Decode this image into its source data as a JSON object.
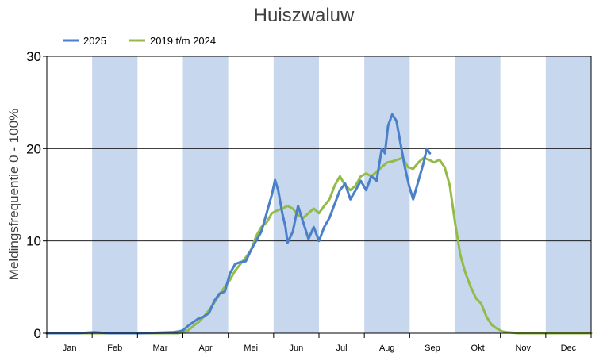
{
  "chart_data": {
    "type": "line",
    "title": "Huiszwaluw",
    "ylabel": "Meldingsfrequentie 0 - 100%",
    "xlabel": "",
    "ylim": [
      0,
      30
    ],
    "yticks": [
      0,
      10,
      20,
      30
    ],
    "months": [
      "Jan",
      "Feb",
      "Mar",
      "Apr",
      "Mei",
      "Jun",
      "Jul",
      "Aug",
      "Sep",
      "Okt",
      "Nov",
      "Dec"
    ],
    "x_unit": "week",
    "x_range": [
      1,
      53
    ],
    "grid": "horizontal",
    "legend_position": "top-left",
    "shaded_months": [
      "Feb",
      "Apr",
      "Jun",
      "Aug",
      "Okt",
      "Dec"
    ],
    "colors": {
      "band": "#c6d7ee",
      "series_2025": "#4a7fc9",
      "series_hist": "#93bb47"
    },
    "series": [
      {
        "name": "2025",
        "color": "#4a7fc9",
        "points": [
          [
            1,
            0
          ],
          [
            4,
            0
          ],
          [
            5.5,
            0.1
          ],
          [
            7,
            0
          ],
          [
            10,
            0
          ],
          [
            13,
            0.1
          ],
          [
            13.6,
            0.2
          ],
          [
            14,
            0.3
          ],
          [
            14.5,
            0.8
          ],
          [
            15,
            1.2
          ],
          [
            15.5,
            1.6
          ],
          [
            16,
            1.8
          ],
          [
            16.5,
            2.2
          ],
          [
            17,
            3.5
          ],
          [
            17.5,
            4.3
          ],
          [
            18,
            4.5
          ],
          [
            18.5,
            6.5
          ],
          [
            19,
            7.5
          ],
          [
            19.5,
            7.7
          ],
          [
            20,
            7.8
          ],
          [
            20.5,
            9.0
          ],
          [
            21,
            10.0
          ],
          [
            21.5,
            11.0
          ],
          [
            22,
            13.0
          ],
          [
            22.5,
            15.0
          ],
          [
            22.8,
            16.6
          ],
          [
            23.1,
            15.5
          ],
          [
            23.5,
            13.0
          ],
          [
            23.8,
            11.5
          ],
          [
            24,
            9.8
          ],
          [
            24.5,
            11.0
          ],
          [
            25,
            13.8
          ],
          [
            25.5,
            12.0
          ],
          [
            26,
            10.2
          ],
          [
            26.5,
            11.5
          ],
          [
            27,
            10.0
          ],
          [
            27.5,
            11.5
          ],
          [
            28,
            12.5
          ],
          [
            28.5,
            14.0
          ],
          [
            29,
            15.5
          ],
          [
            29.5,
            16.2
          ],
          [
            30,
            14.5
          ],
          [
            30.5,
            15.5
          ],
          [
            31,
            16.5
          ],
          [
            31.5,
            15.5
          ],
          [
            32,
            17.0
          ],
          [
            32.5,
            16.5
          ],
          [
            33,
            20.0
          ],
          [
            33.3,
            19.5
          ],
          [
            33.6,
            22.5
          ],
          [
            34,
            23.7
          ],
          [
            34.4,
            23.0
          ],
          [
            34.8,
            20.5
          ],
          [
            35.2,
            18.0
          ],
          [
            35.6,
            16.0
          ],
          [
            36,
            14.5
          ],
          [
            36.5,
            16.5
          ],
          [
            37,
            18.5
          ],
          [
            37.3,
            20.0
          ],
          [
            37.6,
            19.5
          ]
        ]
      },
      {
        "name": "2019 t/m 2024",
        "color": "#93bb47",
        "points": [
          [
            1,
            0
          ],
          [
            13.5,
            0
          ],
          [
            14,
            0.1
          ],
          [
            14.5,
            0.3
          ],
          [
            15,
            0.8
          ],
          [
            15.5,
            1.2
          ],
          [
            16,
            1.8
          ],
          [
            16.5,
            2.5
          ],
          [
            17,
            3.3
          ],
          [
            17.5,
            4.2
          ],
          [
            18,
            5.0
          ],
          [
            18.5,
            5.8
          ],
          [
            19,
            6.8
          ],
          [
            19.5,
            7.5
          ],
          [
            20,
            8.2
          ],
          [
            20.5,
            9.0
          ],
          [
            21,
            10.5
          ],
          [
            21.5,
            11.5
          ],
          [
            22,
            12.0
          ],
          [
            22.5,
            13.0
          ],
          [
            23,
            13.3
          ],
          [
            23.5,
            13.5
          ],
          [
            24,
            13.8
          ],
          [
            24.5,
            13.5
          ],
          [
            25,
            12.8
          ],
          [
            25.5,
            12.5
          ],
          [
            26,
            13.0
          ],
          [
            26.5,
            13.5
          ],
          [
            27,
            13.0
          ],
          [
            27.5,
            13.8
          ],
          [
            28,
            14.5
          ],
          [
            28.5,
            16.0
          ],
          [
            29,
            17.0
          ],
          [
            29.5,
            16.0
          ],
          [
            30,
            15.5
          ],
          [
            30.5,
            16.0
          ],
          [
            31,
            17.0
          ],
          [
            31.5,
            17.3
          ],
          [
            32,
            17.0
          ],
          [
            32.5,
            17.5
          ],
          [
            33,
            18.0
          ],
          [
            33.5,
            18.5
          ],
          [
            34,
            18.6
          ],
          [
            34.5,
            18.8
          ],
          [
            35,
            19.0
          ],
          [
            35.5,
            18.0
          ],
          [
            36,
            17.8
          ],
          [
            36.5,
            18.5
          ],
          [
            37,
            19.0
          ],
          [
            37.5,
            18.8
          ],
          [
            38,
            18.5
          ],
          [
            38.5,
            18.8
          ],
          [
            39,
            18.0
          ],
          [
            39.5,
            16.0
          ],
          [
            40,
            12.0
          ],
          [
            40.5,
            8.5
          ],
          [
            41,
            6.5
          ],
          [
            41.5,
            5.0
          ],
          [
            42,
            3.8
          ],
          [
            42.5,
            3.2
          ],
          [
            43,
            1.8
          ],
          [
            43.5,
            0.9
          ],
          [
            44,
            0.5
          ],
          [
            44.5,
            0.2
          ],
          [
            45,
            0.1
          ],
          [
            46,
            0
          ],
          [
            53,
            0
          ]
        ]
      }
    ]
  }
}
